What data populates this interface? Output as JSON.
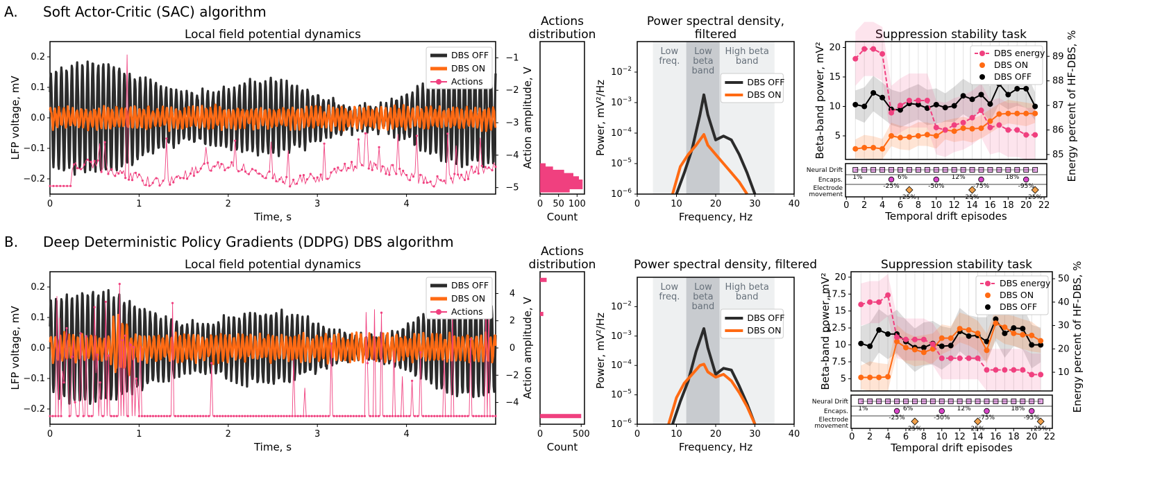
{
  "colors": {
    "off": "#2b2b2b",
    "on": "#ff6a13",
    "actions": "#f0407f",
    "energy": "#f0407f",
    "neural": "#e6a8e6",
    "encaps": "#d946c8",
    "electrode": "#f0a04b",
    "bandgrey": "#c8cbcf",
    "bandlight": "#eef0f1"
  },
  "panels": [
    {
      "letter": "A.",
      "heading": "Soft Actor-Critic (SAC) algorithm",
      "lfp": {
        "title": "Local field potential dynamics",
        "xlabel": "Time, s",
        "ylabel": "LFP voltage, mV",
        "ylabel_right": "Action amplitude, V",
        "xticks": [
          "0",
          "1",
          "2",
          "3",
          "4"
        ],
        "yticks": [
          "−0.2",
          "−0.1",
          "0.0",
          "0.1",
          "0.2"
        ],
        "rticks": [
          "−1",
          "−2",
          "−3",
          "−4",
          "−5"
        ],
        "legend": [
          "DBS OFF",
          "DBS ON",
          "Actions"
        ]
      },
      "hist": {
        "title_line1": "Actions",
        "title_line2": "distribution",
        "xlabel": "Count",
        "xticks": [
          "0",
          "50",
          "100"
        ]
      },
      "psd": {
        "title_line1": "Power spectral density,",
        "title_line2": "filtered",
        "xlabel": "Frequency, Hz",
        "ylabel": "Power, mV²/Hz",
        "xticks": [
          "0",
          "10",
          "20",
          "30",
          "40"
        ],
        "bands": [
          [
            "Low",
            "freq."
          ],
          [
            "Low",
            "beta",
            "band"
          ],
          [
            "High beta",
            "band"
          ]
        ],
        "legend": [
          "DBS OFF",
          "DBS ON"
        ]
      },
      "stab": {
        "title": "Suppression stability task",
        "ylabel": "Beta-band power, mV²",
        "ylabel_right": "Energy percent of HF-DBS, %",
        "xlabel": "Temporal drift episodes",
        "yticks": [
          "5",
          "10",
          "15",
          "20"
        ],
        "rticks": [
          "85",
          "86",
          "87",
          "88",
          "89"
        ],
        "xticks": [
          "0",
          "2",
          "4",
          "6",
          "8",
          "10",
          "12",
          "14",
          "16",
          "18",
          "20",
          "22"
        ],
        "legend": [
          "DBS energy",
          "DBS ON",
          "DBS OFF"
        ],
        "rows": [
          "Neural Drift",
          "Encaps.",
          "Electrode",
          "movement"
        ],
        "neural_pcts": [
          "1%",
          "6%",
          "12%",
          "18%"
        ],
        "encaps_pcts": [
          "-25%",
          "-50%",
          "-75%",
          "-95%"
        ],
        "electrode_pcts": [
          "25%",
          "25%",
          "25%"
        ]
      }
    },
    {
      "letter": "B.",
      "heading": "Deep Deterministic Policy Gradients (DDPG) DBS algorithm",
      "lfp": {
        "title": "Local field potential dynamics",
        "xlabel": "Time, s",
        "ylabel": "LFP voltage, mV",
        "ylabel_right": "Action amplitude, V",
        "xticks": [
          "0",
          "1",
          "2",
          "3",
          "4"
        ],
        "yticks": [
          "−0.2",
          "−0.1",
          "0.0",
          "0.1",
          "0.2"
        ],
        "rticks": [
          "4",
          "2",
          "0",
          "−2",
          "−4"
        ],
        "legend": [
          "DBS OFF",
          "DBS ON",
          "Actions"
        ]
      },
      "hist": {
        "title_line1": "Actions",
        "title_line2": "distribution",
        "xlabel": "Count",
        "xticks": [
          "0",
          "500"
        ]
      },
      "psd": {
        "title_line1": "Power spectral density, filtered",
        "title_line2": "",
        "xlabel": "Frequency, Hz",
        "ylabel": "Power, mV²/Hz",
        "xticks": [
          "0",
          "10",
          "20",
          "30",
          "40"
        ],
        "bands": [
          [
            "Low",
            "freq."
          ],
          [
            "Low",
            "beta",
            "band"
          ],
          [
            "High beta",
            "band"
          ]
        ],
        "legend": [
          "DBS OFF",
          "DBS ON"
        ]
      },
      "stab": {
        "title": "Suppression stability task",
        "ylabel": "Beta-band power, mV²",
        "ylabel_right": "Energy percent of HF-DBS, %",
        "xlabel": "Temporal drift episodes",
        "yticks": [
          "5",
          "7.5",
          "10",
          "12.5",
          "15",
          "17.5",
          "20"
        ],
        "rticks": [
          "10",
          "20",
          "30",
          "40",
          "50"
        ],
        "xticks": [
          "0",
          "2",
          "4",
          "6",
          "8",
          "10",
          "12",
          "14",
          "16",
          "18",
          "20",
          "22"
        ],
        "legend": [
          "DBS energy",
          "DBS ON",
          "DBS OFF"
        ],
        "rows": [
          "Neural Drift",
          "Encaps.",
          "Electrode",
          "movement"
        ],
        "neural_pcts": [
          "1%",
          "6%",
          "12%",
          "18%"
        ],
        "encaps_pcts": [
          "-25%",
          "-50%",
          "-75%",
          "-95%"
        ],
        "electrode_pcts": [
          "25%",
          "25%",
          "25%"
        ]
      }
    }
  ],
  "chart_data": [
    {
      "type": "line",
      "title": "A. SAC — Local field potential dynamics",
      "xlabel": "Time, s",
      "ylabel": "LFP voltage, mV",
      "xlim": [
        0,
        5
      ],
      "ylim": [
        -0.25,
        0.25
      ],
      "y2label": "Action amplitude, V",
      "y2lim": [
        -5.2,
        -0.5
      ],
      "series": [
        {
          "name": "DBS OFF",
          "amplitude_mV": 0.17,
          "dominant_freq_Hz": 17
        },
        {
          "name": "DBS ON",
          "amplitude_mV": 0.04
        },
        {
          "name": "Actions",
          "typical_V": -4.5,
          "range_V": [
            -5,
            -0.9
          ]
        }
      ]
    },
    {
      "type": "bar",
      "title": "A. Actions distribution",
      "xlabel": "Count",
      "bins_V": [
        -4.4,
        -4.5,
        -4.6,
        -4.7,
        -4.8,
        -4.9,
        -5.0
      ],
      "counts": [
        15,
        35,
        65,
        90,
        105,
        115,
        80
      ]
    },
    {
      "type": "line",
      "title": "A. Power spectral density, filtered",
      "xlabel": "Frequency, Hz",
      "ylabel": "Power, mV²/Hz",
      "yscale": "log",
      "xlim": [
        0,
        40
      ],
      "ylim": [
        1e-06,
        0.1
      ],
      "bands_Hz": {
        "low_freq": [
          4,
          12.5
        ],
        "low_beta": [
          12.5,
          21
        ],
        "high_beta": [
          21,
          35
        ]
      },
      "series": [
        {
          "name": "DBS OFF",
          "x": [
            10,
            12,
            14,
            16,
            17,
            18,
            20,
            22,
            24,
            26,
            28,
            30
          ],
          "y": [
            1e-06,
            5e-06,
            3e-05,
            0.0004,
            0.0018,
            0.0004,
            6e-05,
            8e-05,
            6e-05,
            2e-05,
            5e-06,
            1e-06
          ]
        },
        {
          "name": "DBS ON",
          "x": [
            9,
            11,
            13,
            15,
            17,
            18,
            20,
            22,
            24,
            26,
            28
          ],
          "y": [
            1e-06,
            8e-06,
            2e-05,
            4e-05,
            9e-05,
            4e-05,
            2e-05,
            1e-05,
            5e-06,
            2.5e-06,
            1e-06
          ]
        }
      ]
    },
    {
      "type": "line",
      "title": "A. Suppression stability task",
      "xlabel": "Temporal drift episodes",
      "ylabel": "Beta-band power, mV²",
      "ylim": [
        1,
        21
      ],
      "y2label": "Energy percent of HF-DBS, %",
      "y2lim": [
        84.8,
        89.6
      ],
      "x": [
        1,
        2,
        3,
        4,
        5,
        6,
        7,
        8,
        9,
        10,
        11,
        12,
        13,
        14,
        15,
        16,
        17,
        18,
        19,
        20,
        21
      ],
      "series": [
        {
          "name": "DBS OFF",
          "values": [
            10.3,
            10,
            12.3,
            11.5,
            9.5,
            9.4,
            10.5,
            10.3,
            9.7,
            10.3,
            9.8,
            10.1,
            11.8,
            11.2,
            12,
            10.4,
            13.8,
            12,
            13,
            13,
            10
          ]
        },
        {
          "name": "DBS ON",
          "values": [
            2.8,
            3,
            3,
            2.8,
            5,
            4.7,
            4.8,
            5,
            5.2,
            5,
            6,
            5.8,
            6.3,
            6.2,
            6.3,
            7.5,
            8.7,
            8.8,
            8.8,
            8.8,
            8.8
          ]
        },
        {
          "name": "DBS energy",
          "axis": "right",
          "values": [
            88.9,
            89.3,
            89.3,
            89.1,
            86.7,
            87,
            87.2,
            87.2,
            87.2,
            86.1,
            86,
            86.2,
            86.3,
            86.5,
            86.8,
            86.1,
            86.2,
            86,
            86,
            85.8,
            85.8
          ]
        }
      ]
    },
    {
      "type": "line",
      "title": "B. DDPG — Local field potential dynamics",
      "xlabel": "Time, s",
      "ylabel": "LFP voltage, mV",
      "xlim": [
        0,
        5
      ],
      "ylim": [
        -0.25,
        0.25
      ],
      "y2label": "Action amplitude, V",
      "y2lim": [
        -5.6,
        5.6
      ],
      "series": [
        {
          "name": "DBS OFF",
          "amplitude_mV": 0.17
        },
        {
          "name": "DBS ON",
          "amplitude_mV": 0.05
        },
        {
          "name": "Actions",
          "typical_V": -5,
          "range_V": [
            -5,
            5
          ]
        }
      ]
    },
    {
      "type": "bar",
      "title": "B. Actions distribution",
      "xlabel": "Count",
      "bins_V": [
        5,
        2.5,
        -5
      ],
      "counts": [
        80,
        40,
        500
      ]
    },
    {
      "type": "line",
      "title": "B. Power spectral density, filtered",
      "xlabel": "Frequency, Hz",
      "ylabel": "Power, mV²/Hz",
      "yscale": "log",
      "xlim": [
        0,
        40
      ],
      "ylim": [
        1e-06,
        0.1
      ],
      "bands_Hz": {
        "low_freq": [
          4,
          12.5
        ],
        "low_beta": [
          12.5,
          21
        ],
        "high_beta": [
          21,
          35
        ]
      },
      "series": [
        {
          "name": "DBS OFF",
          "x": [
            9,
            11,
            13,
            15,
            17,
            18,
            20,
            22,
            24,
            26,
            28,
            30
          ],
          "y": [
            1e-06,
            6e-06,
            3e-05,
            0.0003,
            0.0018,
            0.0004,
            5e-05,
            8e-05,
            7e-05,
            2e-05,
            5e-06,
            1e-06
          ]
        },
        {
          "name": "DBS ON",
          "x": [
            8,
            10,
            12,
            14,
            16,
            17,
            18,
            20,
            22,
            24,
            26,
            28,
            30
          ],
          "y": [
            1e-06,
            8e-06,
            2.5e-05,
            5e-05,
            0.0001,
            0.00011,
            6e-05,
            4e-05,
            5e-05,
            3e-05,
            1.2e-05,
            4e-06,
            1e-06
          ]
        }
      ]
    },
    {
      "type": "line",
      "title": "B. Suppression stability task",
      "xlabel": "Temporal drift episodes",
      "ylabel": "Beta-band power, mV²",
      "ylim": [
        3.2,
        20.8
      ],
      "y2label": "Energy percent of HF-DBS, %",
      "y2lim": [
        2,
        53
      ],
      "x": [
        1,
        2,
        3,
        4,
        5,
        6,
        7,
        8,
        9,
        10,
        11,
        12,
        13,
        14,
        15,
        16,
        17,
        18,
        19,
        20,
        21
      ],
      "series": [
        {
          "name": "DBS OFF",
          "values": [
            10.2,
            9.8,
            12.2,
            11.6,
            11.6,
            10.5,
            9.6,
            9.6,
            10.2,
            9.8,
            9.9,
            12,
            11.3,
            11.4,
            10.5,
            13.8,
            11.7,
            12.5,
            12.4,
            10,
            10
          ]
        },
        {
          "name": "DBS ON",
          "values": [
            5.2,
            5.2,
            5.2,
            5.3,
            10.5,
            9.6,
            9.3,
            8.9,
            9.4,
            11,
            11,
            12.4,
            12.2,
            11.7,
            9.2,
            13.2,
            12.6,
            11.7,
            11.5,
            11.4,
            10.6
          ]
        },
        {
          "name": "DBS energy",
          "axis": "right",
          "values": [
            39,
            40,
            40,
            43,
            25,
            24,
            24,
            24,
            22,
            16,
            16,
            16,
            16,
            16,
            11,
            11,
            11,
            11,
            11,
            9,
            9
          ]
        }
      ]
    }
  ]
}
